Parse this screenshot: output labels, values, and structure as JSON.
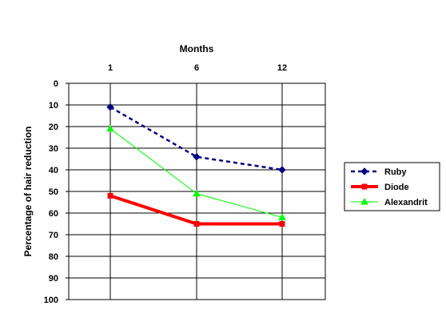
{
  "chart_data": {
    "type": "line",
    "title": "",
    "xlabel": "Months",
    "ylabel": "Percentage of hair reduction",
    "categories": [
      "1",
      "6",
      "12"
    ],
    "ylim": [
      0,
      100
    ],
    "y_inverted": true,
    "y_ticks": [
      "0",
      "10",
      "20",
      "30",
      "40",
      "50",
      "60",
      "70",
      "80",
      "90",
      "100"
    ],
    "grid": true,
    "legend_position": "right",
    "series": [
      {
        "name": "Ruby",
        "values": [
          11,
          34,
          40
        ],
        "color": "#000080",
        "style": "dashed",
        "marker": "diamond"
      },
      {
        "name": "Diode",
        "values": [
          52,
          65,
          65
        ],
        "color": "#ff0000",
        "style": "solid-thick",
        "marker": "square"
      },
      {
        "name": "Alexandrit",
        "values": [
          21,
          51,
          62
        ],
        "color": "#00ff00",
        "style": "solid",
        "marker": "triangle"
      }
    ]
  }
}
